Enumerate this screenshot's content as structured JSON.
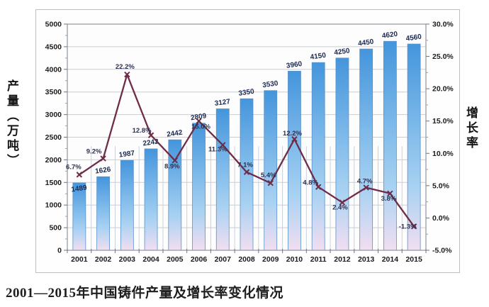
{
  "figure": {
    "caption": "2001—2015年中国铸件产量及增长率变化情况",
    "left_axis_title": "产量（万吨）",
    "right_axis_title": "增长率"
  },
  "chart_data": {
    "type": "bar",
    "subtype": "bar+line combo",
    "title": "2001—2015年中国铸件产量及增长率变化情况",
    "categories": [
      "2001",
      "2002",
      "2003",
      "2004",
      "2005",
      "2006",
      "2007",
      "2008",
      "2009",
      "2010",
      "2011",
      "2012",
      "2013",
      "2014",
      "2015"
    ],
    "series": [
      {
        "name": "产量（万吨）",
        "type": "bar",
        "axis": "left",
        "values": [
          1489,
          1626,
          1987,
          2242,
          2442,
          2809,
          3127,
          3350,
          3530,
          3960,
          4150,
          4250,
          4450,
          4620,
          4560
        ],
        "labels": [
          "1489",
          "1626",
          "1987",
          "2242",
          "2442",
          "2809",
          "3127",
          "3350",
          "3530",
          "3960",
          "4150",
          "4250",
          "4450",
          "4620",
          "4560"
        ]
      },
      {
        "name": "增长率",
        "type": "line",
        "axis": "right",
        "values": [
          6.7,
          9.2,
          22.2,
          12.8,
          8.9,
          15.0,
          11.3,
          7.1,
          5.4,
          12.2,
          4.8,
          2.4,
          4.7,
          3.8,
          -1.3
        ],
        "labels": [
          "6.7%",
          "9.2%",
          "22.2%",
          "12.8%",
          "8.9%",
          "15.0%",
          "11.3%",
          "7.1%",
          "5.4%",
          "12.2%",
          "4.8%",
          "2.4%",
          "4.7%",
          "3.8%",
          "-1.3%"
        ]
      }
    ],
    "left_axis": {
      "min": 0,
      "max": 5000,
      "step": 500,
      "tick_labels": [
        "0",
        "500",
        "1000",
        "1500",
        "2000",
        "2500",
        "3000",
        "3500",
        "4000",
        "4500",
        "5000"
      ]
    },
    "right_axis": {
      "min": -5,
      "max": 30,
      "step": 5,
      "tick_labels": [
        "-5.0%",
        "0.0%",
        "5.0%",
        "10.0%",
        "15.0%",
        "20.0%",
        "25.0%",
        "30.0%"
      ]
    },
    "grid": "horizontal major + vertical category separators (lower half)",
    "legend": "none",
    "colors": {
      "bar_top": "#4495dc",
      "bar_mid": "#a9d2f2",
      "bar_bottom": "#f2def1",
      "bar_stroke": "#5a92c8",
      "line": "#6e2c48",
      "grid": "#c9ced4",
      "tick_text": "#1c1c1c",
      "bar_label": "#1b2a50",
      "pct_label": "#2e3150"
    }
  }
}
